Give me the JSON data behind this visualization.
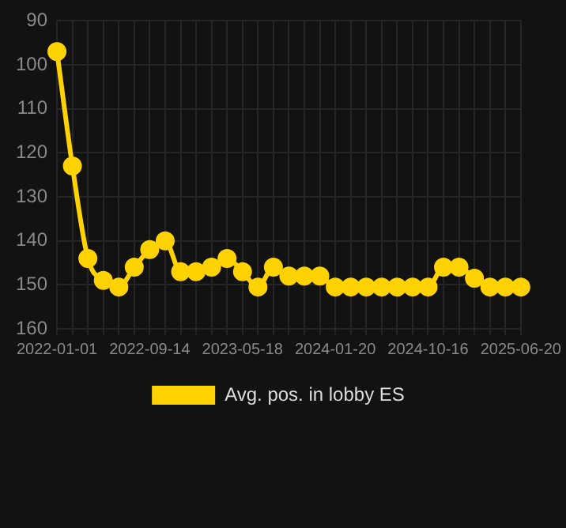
{
  "chart_data": {
    "type": "line",
    "categories": [
      "2022-01-01",
      null,
      null,
      null,
      null,
      null,
      "2022-09-14",
      null,
      null,
      null,
      null,
      null,
      "2023-05-18",
      null,
      null,
      null,
      null,
      null,
      "2024-01-20",
      null,
      null,
      null,
      null,
      null,
      "2024-10-16",
      null,
      null,
      null,
      null,
      null,
      "2025-06-20"
    ],
    "series": [
      {
        "name": "Avg. pos. in lobby ES",
        "color": "#ffd200",
        "values": [
          97,
          123,
          144,
          149,
          150.5,
          146,
          142,
          140,
          147,
          147,
          146,
          144,
          147,
          150.5,
          146,
          148,
          148,
          148,
          150.5,
          150.5,
          150.5,
          150.5,
          150.5,
          150.5,
          150.5,
          146,
          146,
          148.5,
          150.5,
          150.5,
          150.5
        ]
      }
    ],
    "ylim": [
      160,
      90
    ],
    "yticks": [
      90,
      100,
      110,
      120,
      130,
      140,
      150,
      160
    ],
    "grid": true,
    "legend": "bottom",
    "marker": "circle",
    "line_style": "solid"
  }
}
